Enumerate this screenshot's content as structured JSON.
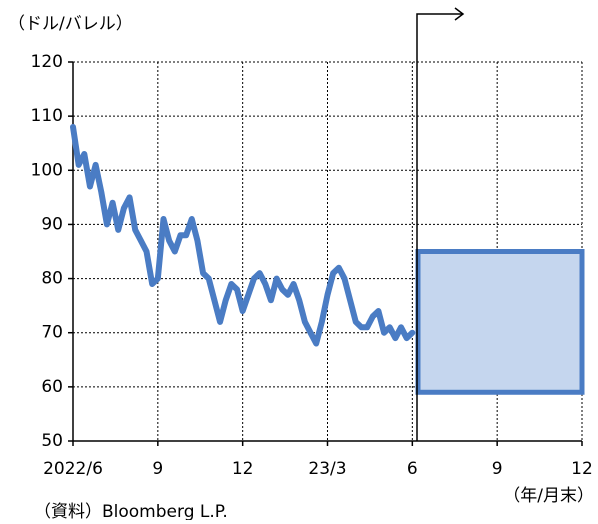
{
  "chart_data": {
    "type": "line",
    "ylabel": "（ドル/バレル）",
    "xlabel": "（年/月末）",
    "source": "（資料）Bloomberg L.P.",
    "color": "#4a7cc4",
    "x": [
      0,
      0.2,
      0.4,
      0.6,
      0.8,
      1,
      1.2,
      1.4,
      1.6,
      1.8,
      2,
      2.2,
      2.4,
      2.6,
      2.8,
      3,
      3.2,
      3.4,
      3.6,
      3.8,
      4,
      4.2,
      4.4,
      4.6,
      4.8,
      5,
      5.2,
      5.4,
      5.6,
      5.8,
      6,
      6.2,
      6.4,
      6.6,
      6.8,
      7,
      7.2,
      7.4,
      7.6,
      7.8,
      8,
      8.2,
      8.4,
      8.6,
      8.8,
      9,
      9.2,
      9.4,
      9.6,
      9.8,
      10,
      10.2,
      10.4,
      10.6,
      10.8,
      11,
      11.2,
      11.4,
      11.6,
      11.8,
      12
    ],
    "values": [
      108,
      101,
      103,
      97,
      101,
      96,
      90,
      94,
      89,
      93,
      95,
      89,
      87,
      85,
      79,
      80,
      91,
      87,
      85,
      88,
      88,
      91,
      87,
      81,
      80,
      76,
      72,
      76,
      79,
      78,
      74,
      77,
      80,
      81,
      79,
      76,
      80,
      78,
      77,
      79,
      76,
      72,
      70,
      68,
      72,
      77,
      81,
      82,
      80,
      76,
      72,
      71,
      71,
      73,
      74,
      70,
      71,
      69,
      71,
      69,
      70
    ],
    "forecast": {
      "color": "#c5d6ee",
      "xrange": [
        12.2,
        18
      ],
      "yrange": [
        59,
        85
      ]
    },
    "xlim": [
      0,
      18
    ],
    "xticks": [
      {
        "value": 0,
        "label": "2022/6"
      },
      {
        "value": 3,
        "label": "9"
      },
      {
        "value": 6,
        "label": "12"
      },
      {
        "value": 9,
        "label": "23/3"
      },
      {
        "value": 12,
        "label": "6"
      },
      {
        "value": 15,
        "label": "9"
      },
      {
        "value": 18,
        "label": "12"
      }
    ],
    "ylim": [
      50,
      120
    ],
    "yticks": [
      50,
      60,
      70,
      80,
      90,
      100,
      110,
      120
    ],
    "grid": true
  }
}
